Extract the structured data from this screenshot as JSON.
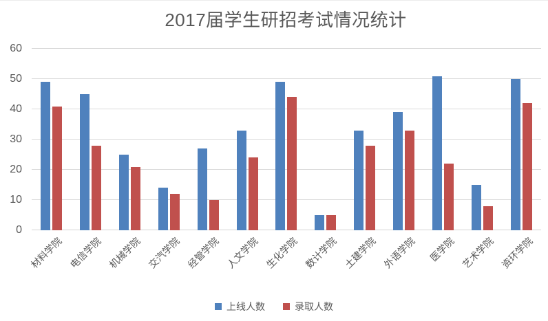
{
  "chart_data": {
    "type": "bar",
    "title": "2017届学生研招考试情况统计",
    "categories": [
      "材料学院",
      "电信学院",
      "机械学院",
      "交汽学院",
      "经管学院",
      "人文学院",
      "生化学院",
      "数计学院",
      "土建学院",
      "外语学院",
      "医学院",
      "艺术学院",
      "资环学院"
    ],
    "series": [
      {
        "name": "上线人数",
        "color": "#4F81BD",
        "values": [
          49,
          45,
          25,
          14,
          27,
          33,
          49,
          5,
          33,
          39,
          51,
          15,
          50
        ]
      },
      {
        "name": "录取人数",
        "color": "#C0504D",
        "values": [
          41,
          28,
          21,
          12,
          10,
          24,
          44,
          5,
          28,
          33,
          22,
          8,
          42
        ]
      }
    ],
    "ylim": [
      0,
      60
    ],
    "yticks": [
      0,
      10,
      20,
      30,
      40,
      50,
      60
    ],
    "grid": true,
    "legend_position": "bottom",
    "colors": {
      "title_text": "#595959",
      "axis_text": "#595959",
      "gridline": "#D9D9D9",
      "background": "#FFFFFF"
    }
  }
}
